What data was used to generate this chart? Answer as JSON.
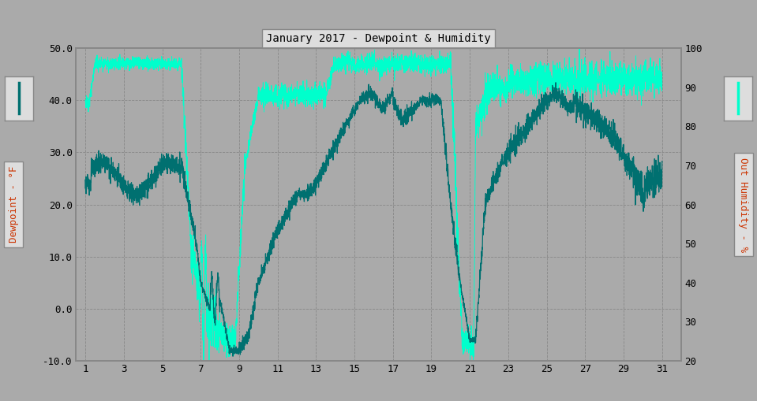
{
  "title": "January 2017 - Dewpoint & Humidity",
  "bg_color": "#aaaaaa",
  "plot_bg_color": "#aaaaaa",
  "dewpoint_color": "#007070",
  "humidity_color": "#00ffcc",
  "left_ylabel": "Dewpoint - °F",
  "right_ylabel": "Out Humidity - %",
  "left_ylim": [
    -10.0,
    50.0
  ],
  "right_ylim": [
    20,
    100
  ],
  "left_yticks": [
    -10.0,
    0.0,
    10.0,
    20.0,
    30.0,
    40.0,
    50.0
  ],
  "right_yticks": [
    20,
    30,
    40,
    50,
    60,
    70,
    80,
    90,
    100
  ],
  "xticks": [
    1,
    3,
    5,
    7,
    9,
    11,
    13,
    15,
    17,
    19,
    21,
    23,
    25,
    27,
    29,
    31
  ],
  "xlim": [
    0.5,
    32
  ],
  "grid_color": "#888888",
  "spine_color": "#888888",
  "tick_label_color": "#000000",
  "label_color": "#cc3300",
  "legend_box_color": "#dddddd",
  "title_box_color": "#dddddd"
}
